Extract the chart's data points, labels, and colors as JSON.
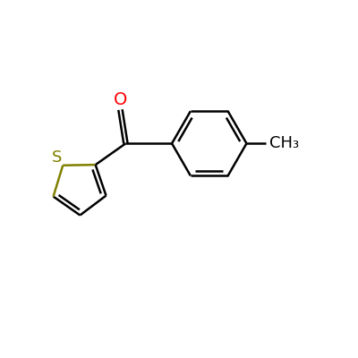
{
  "background_color": "#ffffff",
  "bond_color": "#000000",
  "sulfur_color": "#808000",
  "oxygen_color": "#ff0000",
  "line_width": 1.8,
  "font_size": 13,
  "O_label": "O",
  "S_label": "S",
  "CH3_label": "CH₃",
  "figsize": [
    4.0,
    4.0
  ],
  "dpi": 100,
  "xlim": [
    0,
    10
  ],
  "ylim": [
    0,
    10
  ]
}
